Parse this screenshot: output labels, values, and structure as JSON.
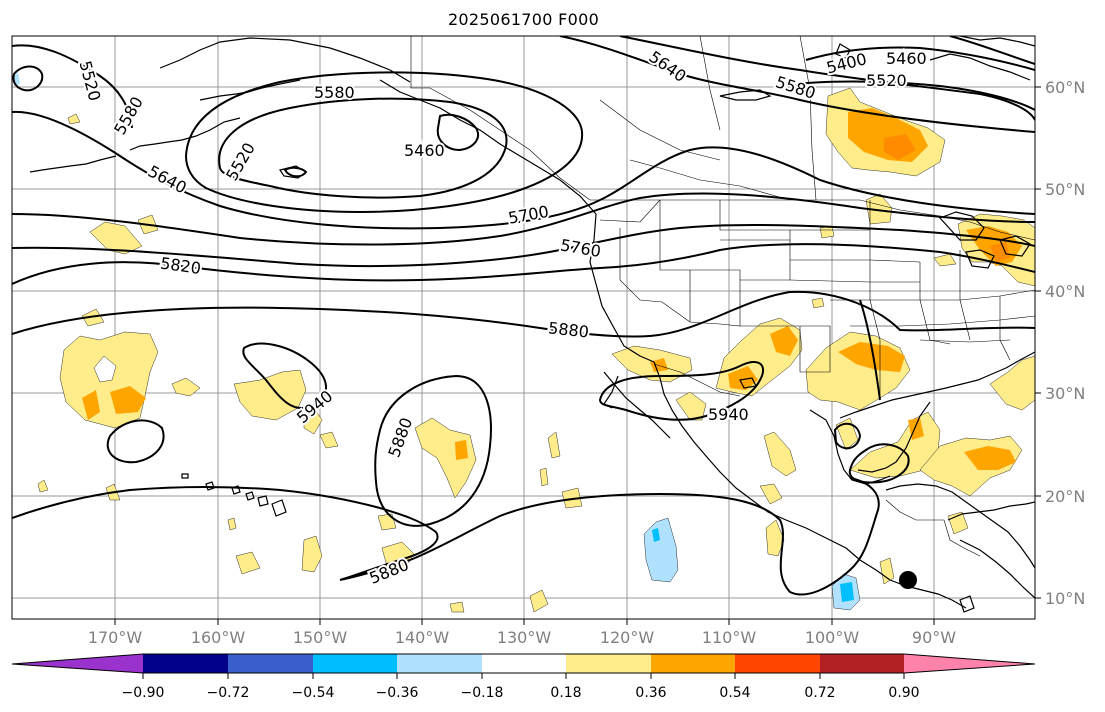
{
  "title": "2025061700 F000",
  "longitude_labels": [
    "170°W",
    "160°W",
    "150°W",
    "140°W",
    "130°W",
    "120°W",
    "110°W",
    "100°W",
    "90°W"
  ],
  "latitude_labels": [
    "60°N",
    "50°N",
    "40°N",
    "30°N",
    "20°N",
    "10°N"
  ],
  "contour_labels": [
    "5520",
    "5580",
    "5580",
    "5520",
    "5460",
    "5640",
    "5700",
    "5760",
    "5820",
    "5880",
    "5940",
    "5880",
    "5880",
    "5940",
    "5640",
    "5580",
    "5400",
    "5460",
    "5520"
  ],
  "colorbar": {
    "tick_labels": [
      "−0.90",
      "−0.72",
      "−0.54",
      "−0.36",
      "−0.18",
      "0.18",
      "0.36",
      "0.54",
      "0.72",
      "0.90"
    ],
    "colors": [
      "#9a32cd",
      "#00008b",
      "#3a5fcd",
      "#00bfff",
      "#b0e2ff",
      "#ffffff",
      "#ffec8b",
      "#ffa500",
      "#ff4500",
      "#b22222",
      "#ff82ab"
    ]
  },
  "shading_colors": {
    "light_yellow": "#ffec8b",
    "orange": "#ffa500",
    "light_blue": "#b0e2ff",
    "deep_sky_blue": "#00bfff"
  }
}
